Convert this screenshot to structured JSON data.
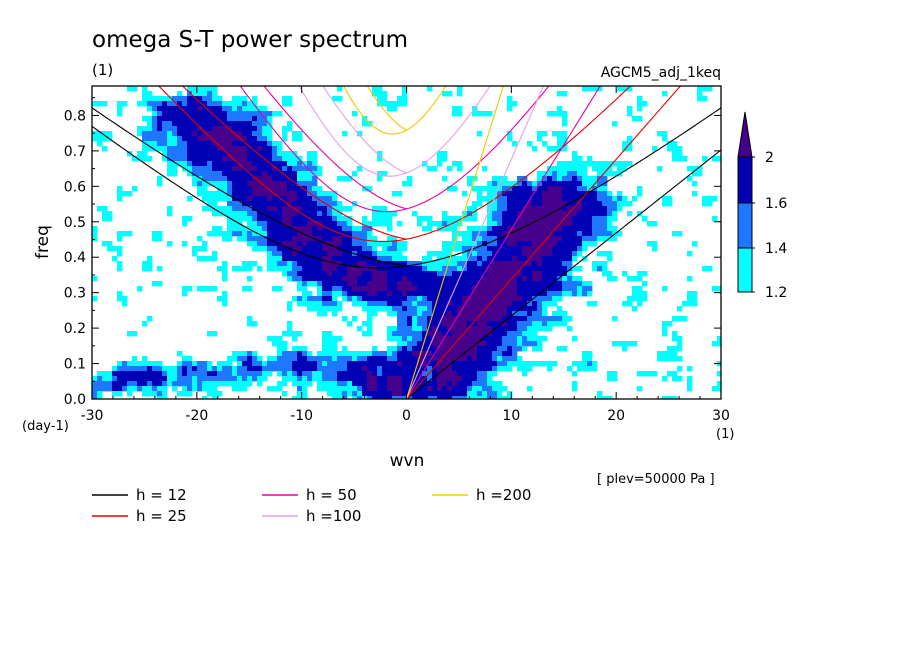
{
  "chart_data": {
    "type": "heatmap",
    "title": "omega S-T power spectrum",
    "subtitle_left": "(1)",
    "subtitle_right": "AGCM5_adj_1keq",
    "xlabel": "wvn",
    "ylabel": "freq",
    "x_unit": "(1)",
    "y_unit": "(day-1)",
    "level_note": "[ plev=50000 Pa ]",
    "xlim": [
      -30,
      30
    ],
    "ylim": [
      0,
      0.883
    ],
    "x_ticks": [
      -30,
      -20,
      -10,
      0,
      10,
      20,
      30
    ],
    "x_tick_labels": [
      "-30",
      "-20",
      "-10",
      "0",
      "10",
      "20",
      "30"
    ],
    "y_ticks": [
      0,
      0.1,
      0.2,
      0.3,
      0.4,
      0.5,
      0.6,
      0.7,
      0.8
    ],
    "y_tick_labels": [
      "0.0",
      "0.1",
      "0.2",
      "0.3",
      "0.4",
      "0.5",
      "0.6",
      "0.7",
      "0.8"
    ],
    "colorbar": {
      "labels": [
        "1.2",
        "1.4",
        "1.6",
        "2"
      ],
      "colors": [
        "#00ffff",
        "#1e78ff",
        "#0000b4",
        "#46008c"
      ]
    },
    "shading_colors": {
      "l1": "#00ffff",
      "l2": "#1e78ff",
      "l3": "#0000b4",
      "l4": "#46008c"
    },
    "dispersion_curves": [
      {
        "name": "h = 12",
        "h": 12,
        "color": "#000000"
      },
      {
        "name": "h = 25",
        "h": 25,
        "color": "#e60000"
      },
      {
        "name": "h = 50",
        "h": 50,
        "color": "#e600aa"
      },
      {
        "name": "h =100",
        "h": 100,
        "color": "#e6a0e6"
      },
      {
        "name": "h =200",
        "h": 200,
        "color": "#f0c800"
      }
    ],
    "features": {
      "kelvin_ridge": [
        [
          1,
          0.02
        ],
        [
          2,
          0.06
        ],
        [
          3,
          0.1
        ],
        [
          4,
          0.13
        ],
        [
          5,
          0.16
        ],
        [
          6,
          0.2
        ],
        [
          7,
          0.23
        ],
        [
          8,
          0.27
        ],
        [
          9,
          0.31
        ],
        [
          10,
          0.35
        ],
        [
          11,
          0.4
        ],
        [
          12,
          0.45
        ],
        [
          13,
          0.5
        ],
        [
          14,
          0.55
        ]
      ],
      "er_mrg_ridge": [
        [
          -20,
          0.8
        ],
        [
          -17,
          0.72
        ],
        [
          -15,
          0.64
        ],
        [
          -12,
          0.55
        ],
        [
          -9,
          0.45
        ],
        [
          -7,
          0.38
        ],
        [
          -5,
          0.35
        ],
        [
          -3,
          0.32
        ],
        [
          -1.5,
          0.33
        ]
      ],
      "low_freq_band": [
        [
          -29,
          0.05
        ],
        [
          -25,
          0.06
        ],
        [
          -20,
          0.07
        ],
        [
          -15,
          0.08
        ],
        [
          -10,
          0.1
        ],
        [
          -5,
          0.08
        ],
        [
          -2,
          0.04
        ]
      ]
    }
  }
}
